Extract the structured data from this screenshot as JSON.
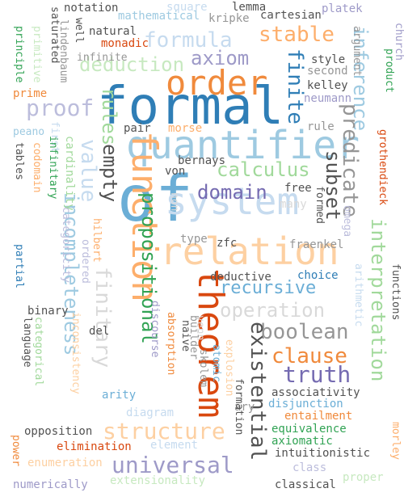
{
  "palette": {
    "dark_blue": "#2f7eb6",
    "light_blue": "#9ecae1",
    "pale_blue": "#c6dbef",
    "orange": "#f08a3c",
    "light_orange": "#fdae6b",
    "pale_orange": "#fdd0a2",
    "dark_orange": "#d9480f",
    "green": "#31a354",
    "light_green": "#a1d99b",
    "pale_green": "#c7e9c0",
    "purple": "#756bb1",
    "light_purple": "#9e9ac8",
    "pale_purple": "#bcbddc",
    "dark_gray": "#525252",
    "gray": "#969696",
    "light_gray": "#d9d9d9"
  },
  "words": [
    {
      "text": "formal"
    },
    {
      "text": "of"
    },
    {
      "text": "order"
    },
    {
      "text": "quantifier"
    },
    {
      "text": "system"
    },
    {
      "text": "function"
    },
    {
      "text": "relation"
    },
    {
      "text": "theorem"
    },
    {
      "text": "formula"
    },
    {
      "text": "axiom"
    },
    {
      "text": "stable"
    },
    {
      "text": "deduction"
    },
    {
      "text": "finite"
    },
    {
      "text": "inference"
    },
    {
      "text": "proof"
    },
    {
      "text": "rules"
    },
    {
      "text": "predicate"
    },
    {
      "text": "subset"
    },
    {
      "text": "calculus"
    },
    {
      "text": "domain"
    },
    {
      "text": "empty"
    },
    {
      "text": "value"
    },
    {
      "text": "incompleteness"
    },
    {
      "text": "finitary"
    },
    {
      "text": "propositional"
    },
    {
      "text": "recursive"
    },
    {
      "text": "operation"
    },
    {
      "text": "boolean"
    },
    {
      "text": "existential"
    },
    {
      "text": "clause"
    },
    {
      "text": "truth"
    },
    {
      "text": "interpretation"
    },
    {
      "text": "structure"
    },
    {
      "text": "universal"
    },
    {
      "text": "notation"
    },
    {
      "text": "mathematical"
    },
    {
      "text": "square"
    },
    {
      "text": "lemma"
    },
    {
      "text": "kripke"
    },
    {
      "text": "cartesian"
    },
    {
      "text": "platek"
    },
    {
      "text": "church"
    },
    {
      "text": "saturated"
    },
    {
      "text": "well"
    },
    {
      "text": "natural"
    },
    {
      "text": "monadic"
    },
    {
      "text": "principle"
    },
    {
      "text": "primitive"
    },
    {
      "text": "lindenbaum"
    },
    {
      "text": "infinite"
    },
    {
      "text": "style"
    },
    {
      "text": "second"
    },
    {
      "text": "kelley"
    },
    {
      "text": "neumann"
    },
    {
      "text": "argument"
    },
    {
      "text": "product"
    },
    {
      "text": "prime"
    },
    {
      "text": "peano"
    },
    {
      "text": "first"
    },
    {
      "text": "tables"
    },
    {
      "text": "codomain"
    },
    {
      "text": "cardinality"
    },
    {
      "text": "infinitary"
    },
    {
      "text": "categoricity"
    },
    {
      "text": "pair"
    },
    {
      "text": "morse"
    },
    {
      "text": "bernays"
    },
    {
      "text": "von"
    },
    {
      "text": "free"
    },
    {
      "text": "rule"
    },
    {
      "text": "grothendieck"
    },
    {
      "text": "formed"
    },
    {
      "text": "many"
    },
    {
      "text": "omega"
    },
    {
      "text": "non"
    },
    {
      "text": "hilbert"
    },
    {
      "text": "ordered"
    },
    {
      "text": "type"
    },
    {
      "text": "zfc"
    },
    {
      "text": "fraenkel"
    },
    {
      "text": "arithmetic"
    },
    {
      "text": "choice"
    },
    {
      "text": "functions"
    },
    {
      "text": "partial"
    },
    {
      "text": "binary"
    },
    {
      "text": "del"
    },
    {
      "text": "venn"
    },
    {
      "text": "absorption"
    },
    {
      "text": "deductive"
    },
    {
      "text": "language"
    },
    {
      "text": "categorical"
    },
    {
      "text": "inconsistency"
    },
    {
      "text": "discourse"
    },
    {
      "text": "naive"
    },
    {
      "text": "builder"
    },
    {
      "text": "skolem"
    },
    {
      "text": "atomic"
    },
    {
      "text": "explosion"
    },
    {
      "text": "associativity"
    },
    {
      "text": "ary"
    },
    {
      "text": "formation"
    },
    {
      "text": "disjunction"
    },
    {
      "text": "entailment"
    },
    {
      "text": "arity"
    },
    {
      "text": "diagram"
    },
    {
      "text": "equivalence"
    },
    {
      "text": "axiomatic"
    },
    {
      "text": "opposition"
    },
    {
      "text": "elimination"
    },
    {
      "text": "element"
    },
    {
      "text": "intuitionistic"
    },
    {
      "text": "power"
    },
    {
      "text": "enumeration"
    },
    {
      "text": "class"
    },
    {
      "text": "morley"
    },
    {
      "text": "proper"
    },
    {
      "text": "numerically"
    },
    {
      "text": "extensionality"
    },
    {
      "text": "classical"
    }
  ]
}
